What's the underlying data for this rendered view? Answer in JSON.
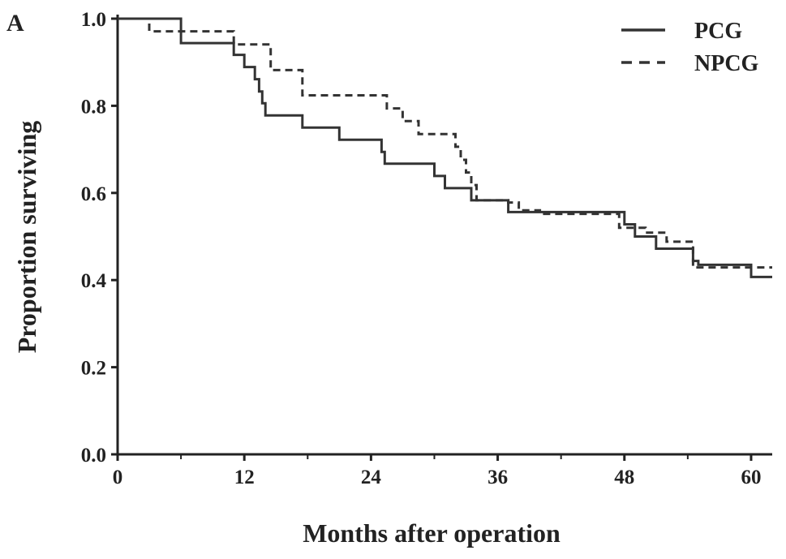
{
  "panel_label": "A",
  "chart_data": {
    "type": "line",
    "subtype": "kaplan-meier-step",
    "title": "",
    "xlabel": "Months after operation",
    "ylabel": "Proportion surviving",
    "xlim": [
      0,
      62
    ],
    "ylim": [
      0.0,
      1.0
    ],
    "xticks": [
      0,
      12,
      24,
      36,
      48,
      60
    ],
    "xtick_labels": [
      "0",
      "12",
      "24",
      "36",
      "48",
      "60"
    ],
    "yticks": [
      0.0,
      0.2,
      0.4,
      0.6,
      0.8,
      1.0
    ],
    "ytick_labels": [
      "0.0",
      "0.2",
      "0.4",
      "0.6",
      "0.8",
      "1.0"
    ],
    "grid": false,
    "legend_position": "top-right",
    "series": [
      {
        "name": "PCG",
        "line_style": "solid",
        "color": "#333333",
        "points": [
          [
            0,
            1.0
          ],
          [
            6,
            0.944
          ],
          [
            11,
            0.917
          ],
          [
            12,
            0.889
          ],
          [
            13,
            0.861
          ],
          [
            13.4,
            0.833
          ],
          [
            13.7,
            0.806
          ],
          [
            14,
            0.778
          ],
          [
            17.5,
            0.75
          ],
          [
            21,
            0.722
          ],
          [
            25,
            0.694
          ],
          [
            25.3,
            0.667
          ],
          [
            30,
            0.639
          ],
          [
            31,
            0.611
          ],
          [
            33.5,
            0.583
          ],
          [
            36,
            0.583
          ],
          [
            37,
            0.556
          ],
          [
            48,
            0.528
          ],
          [
            49,
            0.5
          ],
          [
            51,
            0.472
          ],
          [
            54.5,
            0.444
          ],
          [
            55,
            0.435
          ],
          [
            60,
            0.407
          ],
          [
            62,
            0.407
          ]
        ]
      },
      {
        "name": "NPCG",
        "line_style": "dashed",
        "color": "#333333",
        "points": [
          [
            0,
            1.0
          ],
          [
            3,
            0.971
          ],
          [
            11,
            0.941
          ],
          [
            14.5,
            0.882
          ],
          [
            17.5,
            0.824
          ],
          [
            25.5,
            0.794
          ],
          [
            27,
            0.765
          ],
          [
            28.5,
            0.735
          ],
          [
            32,
            0.706
          ],
          [
            32.5,
            0.676
          ],
          [
            33,
            0.647
          ],
          [
            33.5,
            0.618
          ],
          [
            34,
            0.583
          ],
          [
            37,
            0.578
          ],
          [
            38,
            0.56
          ],
          [
            40,
            0.552
          ],
          [
            47,
            0.552
          ],
          [
            47.5,
            0.52
          ],
          [
            50,
            0.509
          ],
          [
            52,
            0.488
          ],
          [
            54.5,
            0.429
          ],
          [
            60,
            0.429
          ],
          [
            62,
            0.429
          ]
        ]
      }
    ]
  }
}
